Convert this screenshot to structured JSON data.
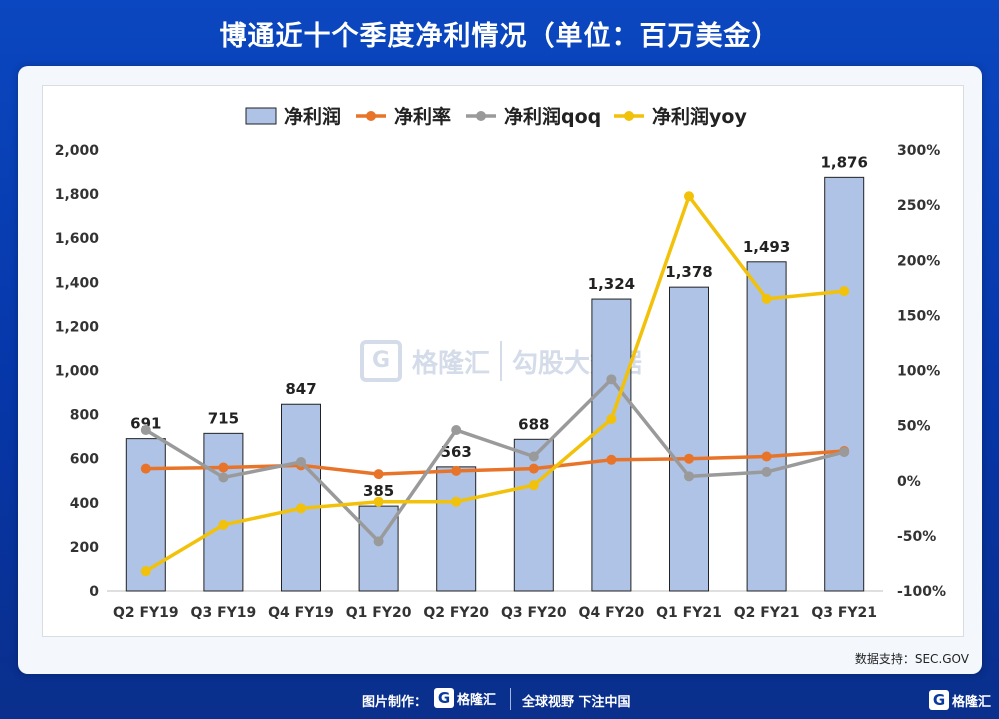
{
  "title": "博通近十个季度净利情况（单位：百万美金）",
  "source": "数据支持：SEC.GOV",
  "footer": {
    "made_by": "图片制作：",
    "brand": "格隆汇",
    "slogan": "全球视野 下注中国"
  },
  "corner_brand": "格隆汇",
  "watermark": {
    "left": "格隆汇",
    "right": "勾股大数据"
  },
  "colors": {
    "bar": "#aec3e6",
    "bar_border": "#222222",
    "net_margin": "#e8742a",
    "qoq": "#9a9a9a",
    "yoy": "#f2c10a"
  },
  "chart_data": {
    "type": "bar",
    "categories": [
      "Q2 FY19",
      "Q3 FY19",
      "Q4 FY19",
      "Q1 FY20",
      "Q2 FY20",
      "Q3 FY20",
      "Q4 FY20",
      "Q1 FY21",
      "Q2 FY21",
      "Q3 FY21"
    ],
    "legend_position": "top",
    "series": [
      {
        "name": "净利润",
        "type": "bar",
        "axis": "left",
        "values": [
          691,
          715,
          847,
          385,
          563,
          688,
          1324,
          1378,
          1493,
          1876
        ],
        "labels": [
          "691",
          "715",
          "847",
          "385",
          "563",
          "688",
          "1,324",
          "1,378",
          "1,493",
          "1,876"
        ]
      },
      {
        "name": "净利率",
        "type": "line",
        "axis": "right",
        "values": [
          11,
          12,
          14,
          6,
          9,
          11,
          19,
          20,
          22,
          27
        ]
      },
      {
        "name": "净利润qoq",
        "type": "line",
        "axis": "right",
        "values": [
          46,
          3,
          17,
          -55,
          46,
          22,
          92,
          4,
          8,
          26
        ]
      },
      {
        "name": "净利润yoy",
        "type": "line",
        "axis": "right",
        "values": [
          -82,
          -40,
          -25,
          -19,
          -19,
          -4,
          56,
          258,
          165,
          172
        ]
      }
    ],
    "left_axis": {
      "min": 0,
      "max": 2000,
      "step": 200,
      "ticks": [
        "0",
        "200",
        "400",
        "600",
        "800",
        "1,000",
        "1,200",
        "1,400",
        "1,600",
        "1,800",
        "2,000"
      ]
    },
    "right_axis": {
      "min": -100,
      "max": 300,
      "step": 50,
      "ticks": [
        "-100%",
        "-50%",
        "0%",
        "50%",
        "100%",
        "150%",
        "200%",
        "250%",
        "300%"
      ]
    },
    "grid": false
  }
}
